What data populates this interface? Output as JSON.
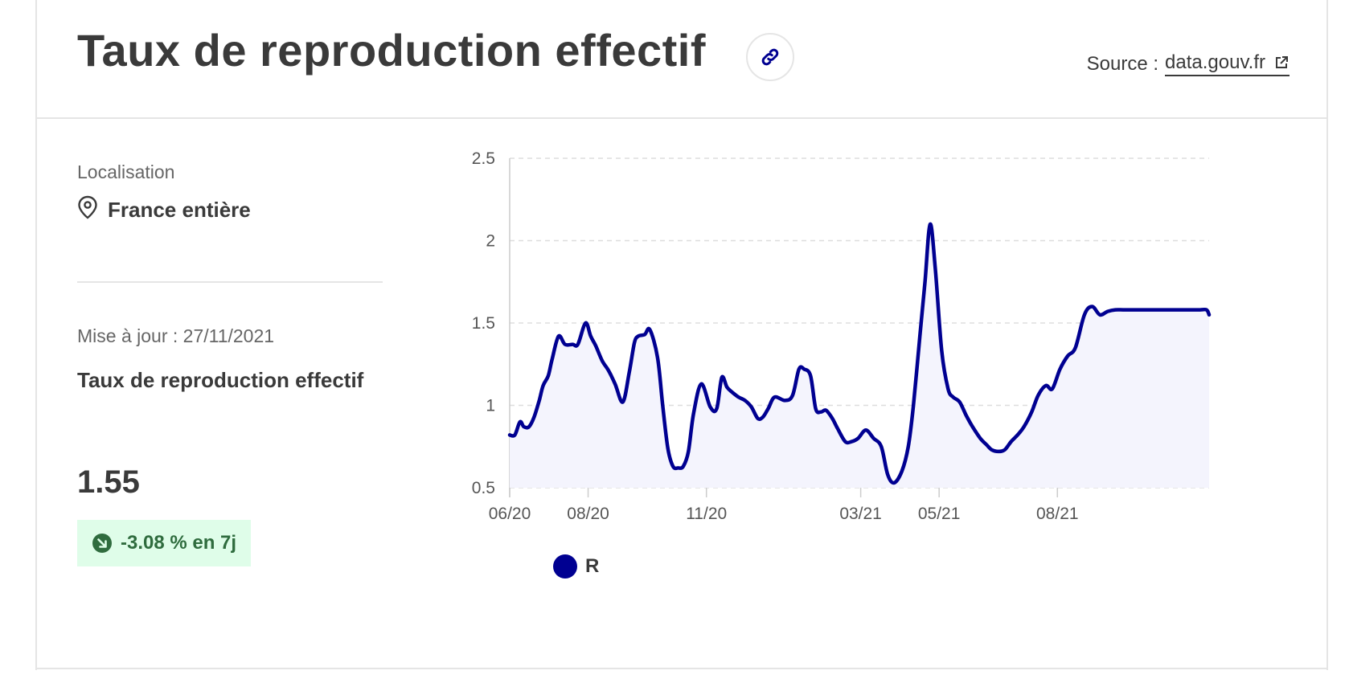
{
  "header": {
    "title": "Taux de reproduction effectif",
    "source_label": "Source :",
    "source_link": "data.gouv.fr"
  },
  "sidebar": {
    "location_label": "Localisation",
    "location_value": "France entière",
    "update_text": "Mise à jour : 27/11/2021",
    "metric_name": "Taux de reproduction effectif",
    "metric_value": "1.55",
    "trend_badge": "-3.08 % en 7j"
  },
  "colors": {
    "series": "#000091",
    "badge_bg": "#dffde9",
    "badge_text": "#2f6c3e",
    "area_fill": "#f4f4fd"
  },
  "icons": {
    "link": "link-icon",
    "external": "external-link-icon",
    "location": "map-pin-icon",
    "trend": "arrow-down-right-icon"
  },
  "chart_data": {
    "type": "line",
    "area": true,
    "grid": "horizontal-dashed",
    "legend_position": "bottom-left",
    "x_tick_labels": [
      "06/20",
      "08/20",
      "11/20",
      "03/21",
      "05/21",
      "08/21"
    ],
    "x_tick_dates": [
      "2020-06-01",
      "2020-08-01",
      "2020-11-01",
      "2021-03-01",
      "2021-05-01",
      "2021-08-01"
    ],
    "y_tick_labels": [
      "2.5",
      "2",
      "1.5",
      "1",
      "0.5"
    ],
    "ylim": [
      0.5,
      2.5
    ],
    "xlim": [
      "2020-06-01",
      "2021-11-27"
    ],
    "series": [
      {
        "name": "R",
        "x": [
          "2020-06-01",
          "2020-06-05",
          "2020-06-09",
          "2020-06-12",
          "2020-06-16",
          "2020-06-20",
          "2020-06-24",
          "2020-06-27",
          "2020-07-01",
          "2020-07-04",
          "2020-07-09",
          "2020-07-14",
          "2020-07-20",
          "2020-07-24",
          "2020-07-30",
          "2020-08-03",
          "2020-08-07",
          "2020-08-12",
          "2020-08-17",
          "2020-08-22",
          "2020-08-28",
          "2020-09-02",
          "2020-09-06",
          "2020-09-09",
          "2020-09-14",
          "2020-09-18",
          "2020-09-24",
          "2020-09-28",
          "2020-10-02",
          "2020-10-06",
          "2020-10-10",
          "2020-10-14",
          "2020-10-18",
          "2020-10-22",
          "2020-10-28",
          "2020-11-04",
          "2020-11-09",
          "2020-11-13",
          "2020-11-17",
          "2020-11-21",
          "2020-11-26",
          "2020-12-01",
          "2020-12-06",
          "2020-12-11",
          "2020-12-15",
          "2020-12-19",
          "2020-12-24",
          "2021-01-01",
          "2021-01-07",
          "2021-01-12",
          "2021-01-16",
          "2021-01-21",
          "2021-01-25",
          "2021-01-29",
          "2021-02-02",
          "2021-02-07",
          "2021-02-11",
          "2021-02-17",
          "2021-02-22",
          "2021-02-27",
          "2021-03-05",
          "2021-03-11",
          "2021-03-17",
          "2021-03-22",
          "2021-03-27",
          "2021-04-02",
          "2021-04-07",
          "2021-04-11",
          "2021-04-16",
          "2021-04-20",
          "2021-04-24",
          "2021-04-28",
          "2021-05-03",
          "2021-05-08",
          "2021-05-12",
          "2021-05-17",
          "2021-05-22",
          "2021-05-27",
          "2021-06-02",
          "2021-06-07",
          "2021-06-11",
          "2021-06-16",
          "2021-06-21",
          "2021-06-26",
          "2021-07-01",
          "2021-07-06",
          "2021-07-12",
          "2021-07-17",
          "2021-07-23",
          "2021-07-28",
          "2021-08-03",
          "2021-08-09",
          "2021-08-15",
          "2021-08-22",
          "2021-08-28",
          "2021-09-03",
          "2021-09-09",
          "2021-09-15",
          "2021-09-21",
          "2021-09-27",
          "2021-10-03",
          "2021-10-09",
          "2021-10-15",
          "2021-10-21",
          "2021-10-27",
          "2021-11-02",
          "2021-11-08",
          "2021-11-14",
          "2021-11-20",
          "2021-11-25",
          "2021-11-27"
        ],
        "values": [
          0.82,
          0.82,
          0.9,
          0.87,
          0.87,
          0.93,
          1.03,
          1.12,
          1.18,
          1.28,
          1.42,
          1.37,
          1.37,
          1.37,
          1.5,
          1.42,
          1.36,
          1.27,
          1.21,
          1.13,
          1.02,
          1.2,
          1.38,
          1.42,
          1.43,
          1.46,
          1.29,
          1.0,
          0.74,
          0.63,
          0.62,
          0.63,
          0.72,
          0.95,
          1.13,
          0.99,
          0.98,
          1.17,
          1.11,
          1.08,
          1.05,
          1.03,
          0.99,
          0.92,
          0.93,
          0.98,
          1.05,
          1.03,
          1.06,
          1.22,
          1.22,
          1.18,
          0.98,
          0.96,
          0.97,
          0.92,
          0.86,
          0.78,
          0.78,
          0.8,
          0.85,
          0.8,
          0.75,
          0.58,
          0.53,
          0.6,
          0.75,
          1.0,
          1.42,
          1.75,
          2.1,
          1.83,
          1.33,
          1.1,
          1.05,
          1.02,
          0.94,
          0.87,
          0.8,
          0.76,
          0.73,
          0.72,
          0.73,
          0.78,
          0.82,
          0.87,
          0.96,
          1.06,
          1.12,
          1.1,
          1.22,
          1.3,
          1.35,
          1.55,
          1.6,
          1.55,
          1.57,
          1.58,
          1.58,
          1.58,
          1.58,
          1.58,
          1.58,
          1.58,
          1.58,
          1.58,
          1.58,
          1.58,
          1.58,
          1.58,
          1.55
        ]
      }
    ]
  }
}
